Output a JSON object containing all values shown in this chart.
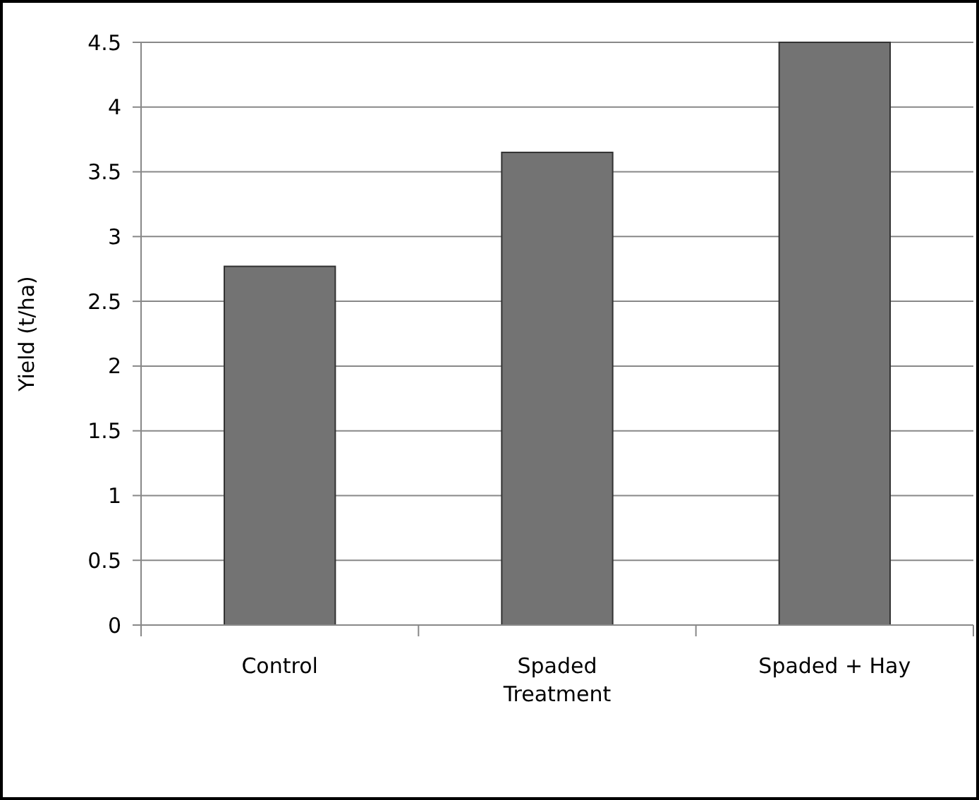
{
  "chart_data": {
    "type": "bar",
    "ylabel": "Yield (t/ha)",
    "categories": [
      "Control",
      "Spaded Treatment",
      "Spaded + Hay"
    ],
    "values": [
      2.77,
      3.65,
      4.5
    ],
    "color": "#737373",
    "ylim": [
      0,
      4.5
    ],
    "yticks": [
      0,
      0.5,
      1,
      1.5,
      2,
      2.5,
      3,
      3.5,
      4,
      4.5
    ],
    "grid": "y"
  }
}
